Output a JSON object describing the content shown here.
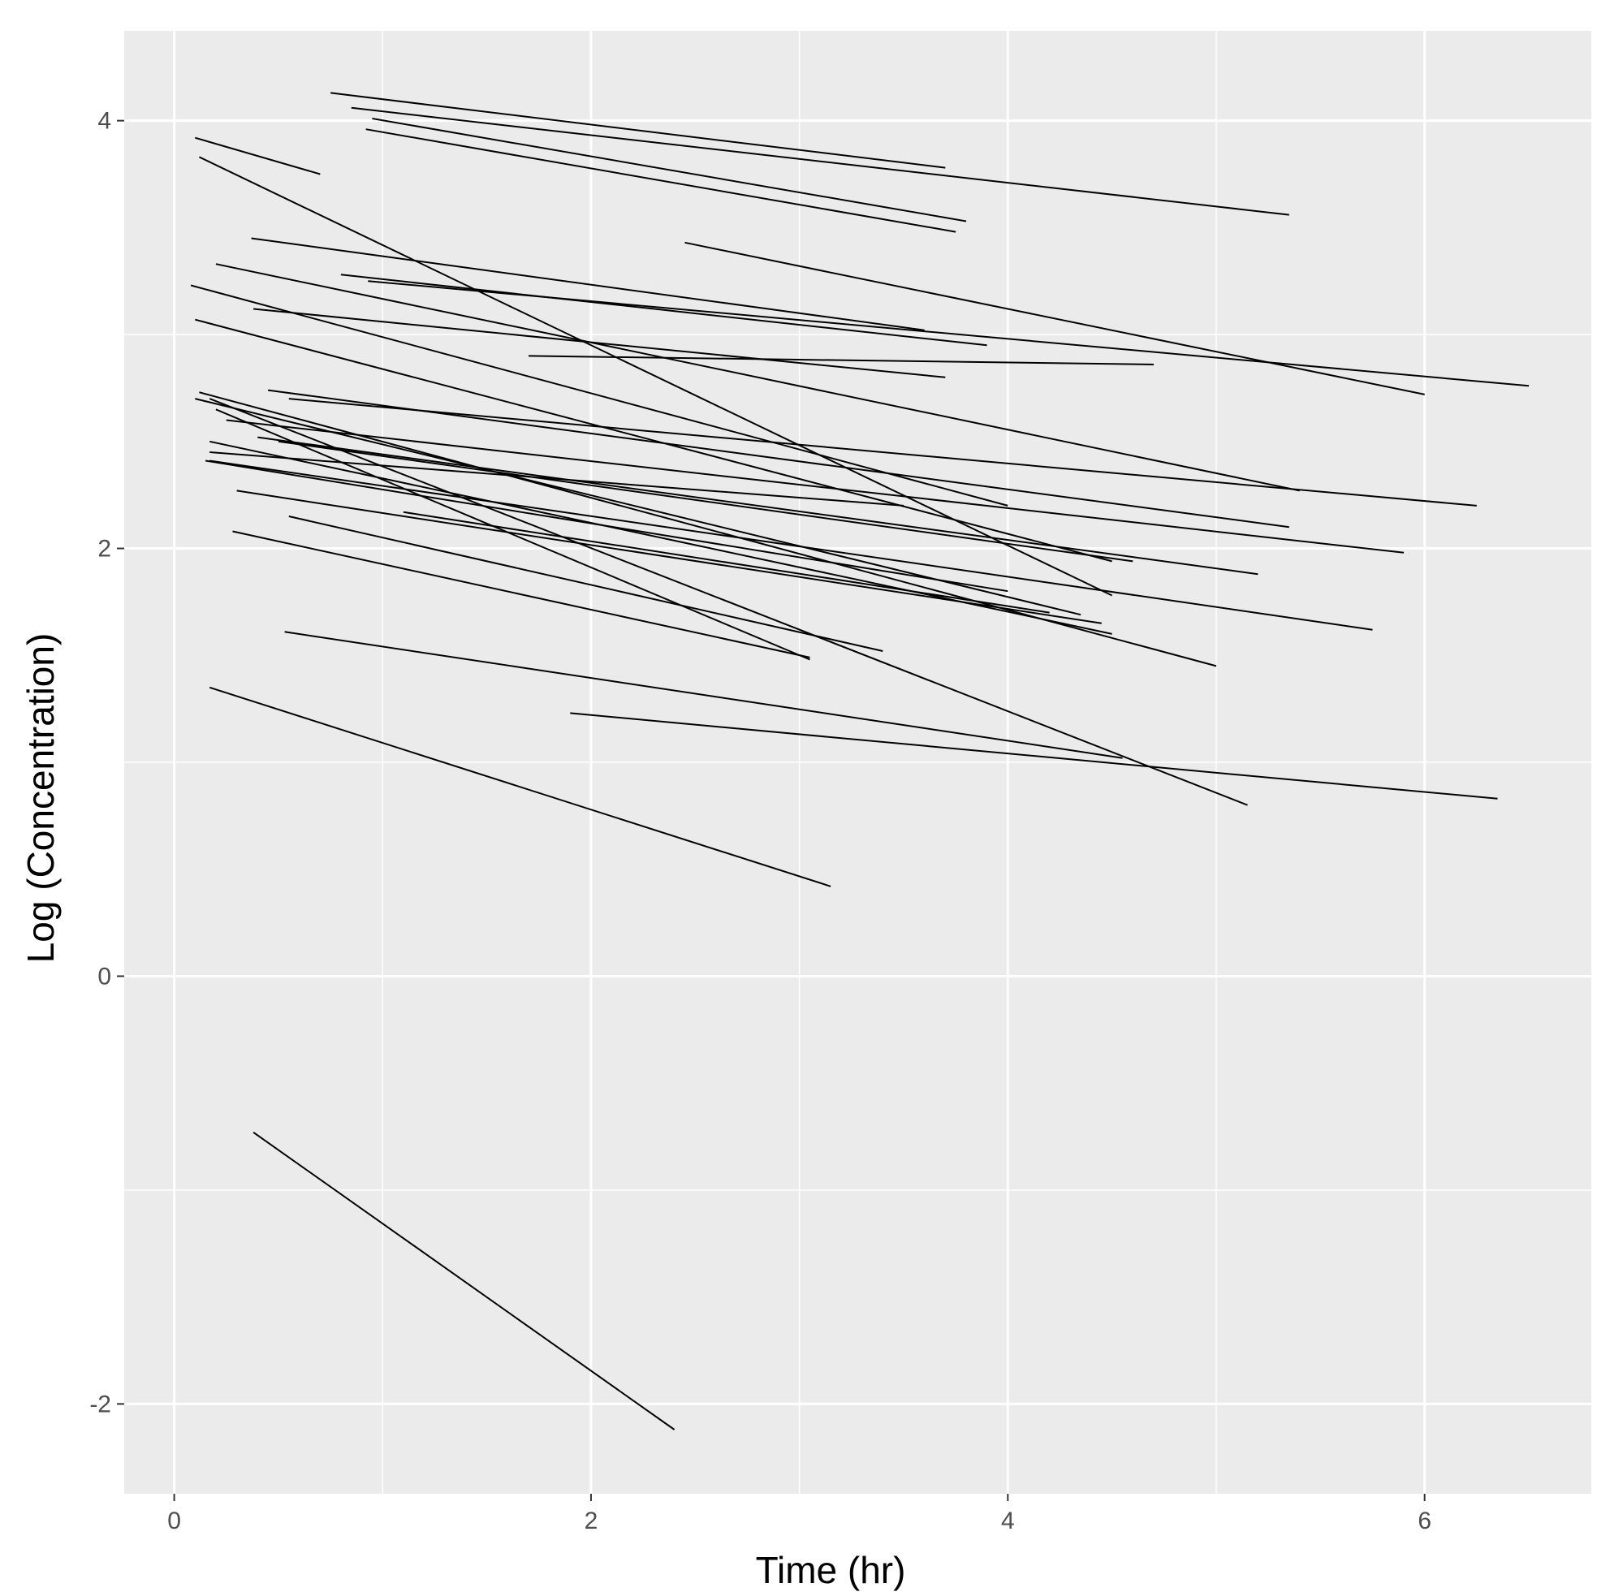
{
  "chart_data": {
    "type": "line",
    "title": "",
    "xlabel": "Time (hr)",
    "ylabel": "Log (Concentration)",
    "xlim": [
      -0.24,
      6.8
    ],
    "ylim": [
      -2.42,
      4.42
    ],
    "x_ticks": [
      "0",
      "2",
      "4",
      "6"
    ],
    "y_ticks": [
      "-2",
      "0",
      "2",
      "4"
    ],
    "grid": true,
    "legend": "none",
    "series": [
      {
        "x": [
          0.75,
          3.7
        ],
        "y": [
          4.13,
          3.78
        ]
      },
      {
        "x": [
          0.85,
          5.35
        ],
        "y": [
          4.06,
          3.56
        ]
      },
      {
        "x": [
          0.95,
          3.8
        ],
        "y": [
          4.01,
          3.53
        ]
      },
      {
        "x": [
          0.92,
          3.75
        ],
        "y": [
          3.96,
          3.48
        ]
      },
      {
        "x": [
          0.1,
          0.7
        ],
        "y": [
          3.92,
          3.75
        ]
      },
      {
        "x": [
          0.12,
          4.5
        ],
        "y": [
          3.83,
          1.78
        ]
      },
      {
        "x": [
          0.37,
          3.6
        ],
        "y": [
          3.45,
          3.02
        ]
      },
      {
        "x": [
          2.45,
          6.0
        ],
        "y": [
          3.43,
          2.72
        ]
      },
      {
        "x": [
          0.2,
          5.4
        ],
        "y": [
          3.33,
          2.27
        ]
      },
      {
        "x": [
          0.8,
          3.9
        ],
        "y": [
          3.28,
          2.95
        ]
      },
      {
        "x": [
          0.93,
          6.5
        ],
        "y": [
          3.25,
          2.76
        ]
      },
      {
        "x": [
          0.08,
          4.0
        ],
        "y": [
          3.23,
          2.2
        ]
      },
      {
        "x": [
          0.38,
          3.7
        ],
        "y": [
          3.12,
          2.8
        ]
      },
      {
        "x": [
          0.1,
          4.5
        ],
        "y": [
          3.07,
          1.94
        ]
      },
      {
        "x": [
          1.7,
          4.7
        ],
        "y": [
          2.9,
          2.86
        ]
      },
      {
        "x": [
          0.45,
          5.35
        ],
        "y": [
          2.74,
          2.1
        ]
      },
      {
        "x": [
          0.55,
          6.25
        ],
        "y": [
          2.7,
          2.2
        ]
      },
      {
        "x": [
          0.12,
          5.0
        ],
        "y": [
          2.73,
          1.45
        ]
      },
      {
        "x": [
          0.1,
          4.35
        ],
        "y": [
          2.7,
          1.69
        ]
      },
      {
        "x": [
          0.25,
          5.9
        ],
        "y": [
          2.6,
          1.98
        ]
      },
      {
        "x": [
          0.4,
          5.2
        ],
        "y": [
          2.52,
          1.88
        ]
      },
      {
        "x": [
          0.17,
          4.5
        ],
        "y": [
          2.5,
          1.6
        ]
      },
      {
        "x": [
          0.5,
          4.6
        ],
        "y": [
          2.5,
          1.94
        ]
      },
      {
        "x": [
          0.17,
          3.5
        ],
        "y": [
          2.45,
          2.2
        ]
      },
      {
        "x": [
          0.17,
          5.75
        ],
        "y": [
          2.41,
          1.62
        ]
      },
      {
        "x": [
          0.15,
          4.0
        ],
        "y": [
          2.41,
          1.8
        ]
      },
      {
        "x": [
          0.3,
          4.45
        ],
        "y": [
          2.27,
          1.65
        ]
      },
      {
        "x": [
          1.1,
          4.2
        ],
        "y": [
          2.17,
          1.7
        ]
      },
      {
        "x": [
          0.55,
          3.4
        ],
        "y": [
          2.15,
          1.52
        ]
      },
      {
        "x": [
          0.28,
          3.05
        ],
        "y": [
          2.08,
          1.49
        ]
      },
      {
        "x": [
          0.2,
          3.05
        ],
        "y": [
          2.65,
          1.48
        ]
      },
      {
        "x": [
          0.53,
          4.55
        ],
        "y": [
          1.61,
          1.02
        ]
      },
      {
        "x": [
          1.9,
          6.35
        ],
        "y": [
          1.23,
          0.83
        ]
      },
      {
        "x": [
          0.17,
          3.15
        ],
        "y": [
          1.35,
          0.42
        ]
      },
      {
        "x": [
          0.17,
          5.15
        ],
        "y": [
          2.7,
          0.8
        ]
      },
      {
        "x": [
          0.38,
          2.4
        ],
        "y": [
          -0.73,
          -2.12
        ]
      }
    ]
  }
}
